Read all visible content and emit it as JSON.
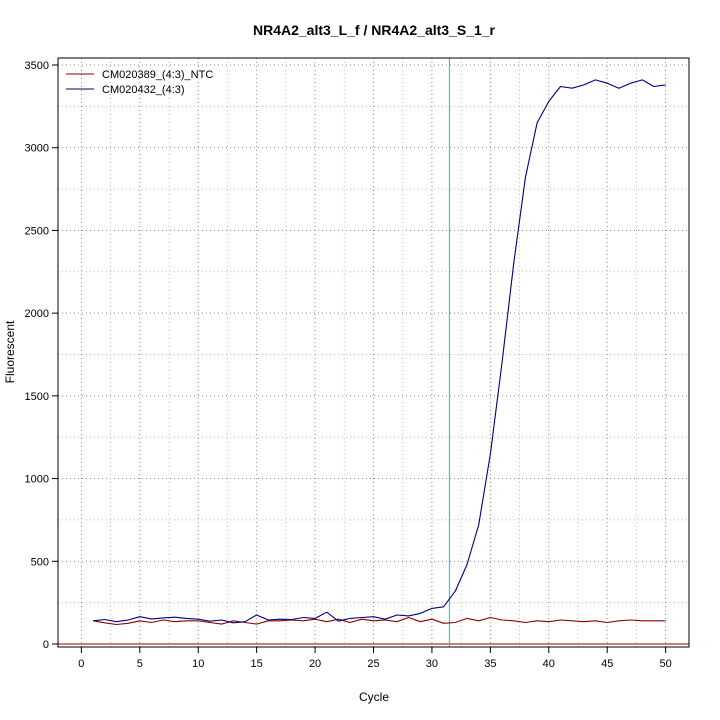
{
  "chart_data": {
    "type": "line",
    "title": "NR4A2_alt3_L_f / NR4A2_alt3_S_1_r",
    "xlabel": "Cycle",
    "ylabel": "Fluorescent",
    "xlim": [
      -2,
      52
    ],
    "ylim": [
      0,
      3500
    ],
    "xticks": [
      0,
      5,
      10,
      15,
      20,
      25,
      30,
      35,
      40,
      45,
      50
    ],
    "yticks": [
      0,
      500,
      1000,
      1500,
      2000,
      2500,
      3000,
      3500
    ],
    "grid": true,
    "legend_position": "top-left",
    "threshold_line": {
      "x": 31.5,
      "color": "#22d3d3"
    },
    "baseline": {
      "y": 0,
      "color": "#8b0000"
    },
    "series": [
      {
        "name": "CM020389_(4:3)_NTC",
        "color": "#8b0000",
        "x": [
          1,
          2,
          3,
          4,
          5,
          6,
          7,
          8,
          9,
          10,
          11,
          12,
          13,
          14,
          15,
          16,
          17,
          18,
          19,
          20,
          21,
          22,
          23,
          24,
          25,
          26,
          27,
          28,
          29,
          30,
          31,
          32,
          33,
          34,
          35,
          36,
          37,
          38,
          39,
          40,
          41,
          42,
          43,
          44,
          45,
          46,
          47,
          48,
          49,
          50
        ],
        "values": [
          140,
          128,
          118,
          125,
          140,
          130,
          145,
          135,
          140,
          140,
          130,
          120,
          140,
          130,
          120,
          140,
          140,
          145,
          140,
          150,
          135,
          150,
          130,
          150,
          140,
          145,
          135,
          160,
          135,
          150,
          125,
          130,
          155,
          140,
          160,
          145,
          140,
          130,
          140,
          135,
          145,
          140,
          135,
          140,
          130,
          140,
          145,
          140,
          140,
          140
        ]
      },
      {
        "name": "CM020432_(4:3)",
        "color": "#000080",
        "x": [
          1,
          2,
          3,
          4,
          5,
          6,
          7,
          8,
          9,
          10,
          11,
          12,
          13,
          14,
          15,
          16,
          17,
          18,
          19,
          20,
          21,
          22,
          23,
          24,
          25,
          26,
          27,
          28,
          29,
          30,
          31,
          32,
          33,
          34,
          35,
          36,
          37,
          38,
          39,
          40,
          41,
          42,
          43,
          44,
          45,
          46,
          47,
          48,
          49,
          50
        ],
        "values": [
          140,
          148,
          135,
          145,
          165,
          152,
          158,
          162,
          155,
          150,
          138,
          145,
          128,
          135,
          175,
          145,
          150,
          148,
          160,
          155,
          192,
          138,
          155,
          160,
          165,
          150,
          175,
          170,
          185,
          215,
          225,
          320,
          480,
          720,
          1150,
          1700,
          2300,
          2820,
          3150,
          3280,
          3370,
          3360,
          3380,
          3410,
          3390,
          3360,
          3390,
          3410,
          3370,
          3380
        ]
      }
    ]
  }
}
